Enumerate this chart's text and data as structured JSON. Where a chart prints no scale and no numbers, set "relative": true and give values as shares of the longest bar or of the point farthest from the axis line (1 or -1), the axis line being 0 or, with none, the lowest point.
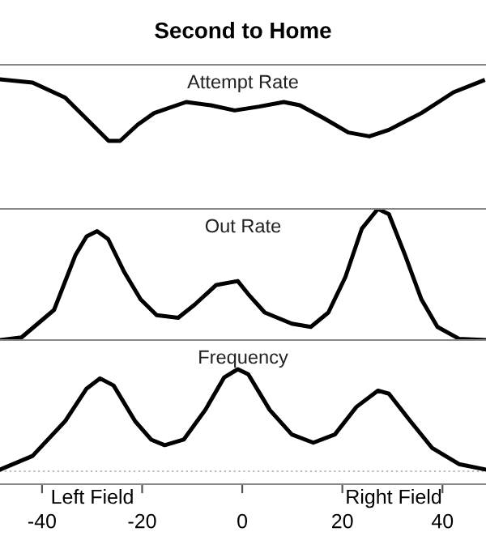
{
  "chart_data": [
    {
      "type": "line",
      "title": "Second to Home",
      "annotations": [
        "Attempt Rate"
      ],
      "relative": true,
      "xlim": [
        -48.4,
        48.7
      ],
      "tick_labels": false,
      "grid": false,
      "marker": "none",
      "line_style": "solid",
      "series": [
        {
          "color": "#000000",
          "x": [
            -48.4,
            -41.9,
            -35.4,
            -30.6,
            -26.7,
            -24.4,
            -20.9,
            -17.6,
            -11.2,
            -6.3,
            -1.5,
            3.4,
            8.3,
            11.5,
            16.3,
            21.2,
            25.4,
            29.3,
            35.8,
            42.2,
            48.1
          ],
          "values": [
            1.0,
            0.975,
            0.86,
            0.675,
            0.525,
            0.525,
            0.65,
            0.74,
            0.825,
            0.8,
            0.76,
            0.79,
            0.825,
            0.8,
            0.7,
            0.59,
            0.56,
            0.61,
            0.74,
            0.9,
            0.99
          ]
        }
      ]
    },
    {
      "type": "line",
      "annotations": [
        "Out Rate"
      ],
      "relative": true,
      "xlim": [
        -48.4,
        48.7
      ],
      "tick_labels": false,
      "grid": false,
      "marker": "none",
      "line_style": "solid",
      "series": [
        {
          "color": "#000000",
          "x": [
            -48.4,
            -44.1,
            -37.6,
            -33.3,
            -31.1,
            -29.0,
            -26.8,
            -23.6,
            -20.3,
            -17.1,
            -12.8,
            -9.5,
            -5.2,
            -0.9,
            1.2,
            4.5,
            9.9,
            13.7,
            17.2,
            20.6,
            23.9,
            27.1,
            29.3,
            32.5,
            35.8,
            39.0,
            43.3,
            48.7
          ],
          "values": [
            0.0,
            0.02,
            0.23,
            0.65,
            0.79,
            0.83,
            0.77,
            0.52,
            0.31,
            0.19,
            0.17,
            0.27,
            0.42,
            0.45,
            0.35,
            0.21,
            0.125,
            0.1,
            0.21,
            0.48,
            0.85,
            1.0,
            0.96,
            0.65,
            0.31,
            0.1,
            0.01,
            0.0
          ]
        }
      ]
    },
    {
      "type": "line",
      "annotations": [
        "Frequency",
        "Left Field",
        "Right Field"
      ],
      "relative": true,
      "xlim": [
        -48.4,
        48.7
      ],
      "xticks": [
        -40,
        -20,
        0,
        20,
        40
      ],
      "tick_labels": "x",
      "grid": false,
      "marker": "none",
      "line_style": "solid",
      "ref_lines": [
        {
          "axis": "y",
          "value": 0,
          "color": "#bbbbbb",
          "line_style": "dotted"
        }
      ],
      "series": [
        {
          "color": "#000000",
          "x": [
            -48.4,
            -41.9,
            -35.4,
            -31.1,
            -28.4,
            -25.7,
            -21.4,
            -18.2,
            -15.5,
            -11.7,
            -7.4,
            -3.6,
            -0.9,
            1.2,
            5.5,
            9.9,
            14.2,
            18.5,
            22.8,
            27.1,
            29.3,
            33.6,
            37.9,
            43.3,
            48.7
          ],
          "values": [
            0.016,
            0.15,
            0.49,
            0.81,
            0.91,
            0.84,
            0.49,
            0.31,
            0.255,
            0.31,
            0.6,
            0.92,
            1.0,
            0.95,
            0.6,
            0.36,
            0.28,
            0.36,
            0.63,
            0.79,
            0.76,
            0.49,
            0.23,
            0.07,
            0.016
          ]
        }
      ]
    }
  ]
}
